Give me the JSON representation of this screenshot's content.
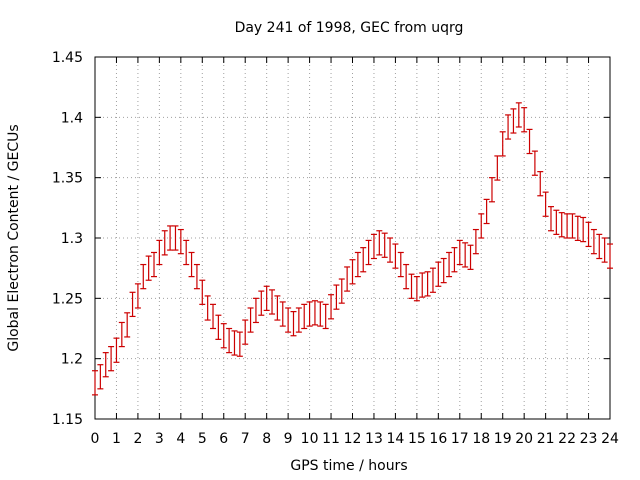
{
  "chart_data": {
    "type": "scatter",
    "title": "Day 241 of 1998, GEC from uqrg",
    "xlabel": "GPS time / hours",
    "ylabel": "Global Electron Content / GECUs",
    "xlim": [
      0,
      24
    ],
    "ylim": [
      1.15,
      1.45
    ],
    "xticks": [
      0,
      1,
      2,
      3,
      4,
      5,
      6,
      7,
      8,
      9,
      10,
      11,
      12,
      13,
      14,
      15,
      16,
      17,
      18,
      19,
      20,
      21,
      22,
      23,
      24
    ],
    "yticks": [
      "1.15",
      "1.2",
      "1.25",
      "1.3",
      "1.35",
      "1.4",
      "1.45"
    ],
    "grid": true,
    "series_color": "#cc0000",
    "x": [
      0.0,
      0.25,
      0.5,
      0.75,
      1.0,
      1.25,
      1.5,
      1.75,
      2.0,
      2.25,
      2.5,
      2.75,
      3.0,
      3.25,
      3.5,
      3.75,
      4.0,
      4.25,
      4.5,
      4.75,
      5.0,
      5.25,
      5.5,
      5.75,
      6.0,
      6.25,
      6.5,
      6.75,
      7.0,
      7.25,
      7.5,
      7.75,
      8.0,
      8.25,
      8.5,
      8.75,
      9.0,
      9.25,
      9.5,
      9.75,
      10.0,
      10.25,
      10.5,
      10.75,
      11.0,
      11.25,
      11.5,
      11.75,
      12.0,
      12.25,
      12.5,
      12.75,
      13.0,
      13.25,
      13.5,
      13.75,
      14.0,
      14.25,
      14.5,
      14.75,
      15.0,
      15.25,
      15.5,
      15.75,
      16.0,
      16.25,
      16.5,
      16.75,
      17.0,
      17.25,
      17.5,
      17.75,
      18.0,
      18.25,
      18.5,
      18.75,
      19.0,
      19.25,
      19.5,
      19.75,
      20.0,
      20.25,
      20.5,
      20.75,
      21.0,
      21.25,
      21.5,
      21.75,
      22.0,
      22.25,
      22.5,
      22.75,
      23.0,
      23.25,
      23.5,
      23.75,
      24.0
    ],
    "y": [
      1.18,
      1.185,
      1.195,
      1.2,
      1.207,
      1.22,
      1.228,
      1.245,
      1.252,
      1.268,
      1.275,
      1.278,
      1.288,
      1.296,
      1.3,
      1.3,
      1.297,
      1.288,
      1.278,
      1.268,
      1.255,
      1.242,
      1.235,
      1.226,
      1.219,
      1.215,
      1.213,
      1.212,
      1.222,
      1.232,
      1.24,
      1.246,
      1.25,
      1.247,
      1.242,
      1.237,
      1.232,
      1.229,
      1.232,
      1.235,
      1.237,
      1.238,
      1.237,
      1.235,
      1.243,
      1.251,
      1.256,
      1.266,
      1.272,
      1.278,
      1.282,
      1.288,
      1.293,
      1.296,
      1.294,
      1.29,
      1.285,
      1.278,
      1.268,
      1.26,
      1.258,
      1.261,
      1.262,
      1.265,
      1.27,
      1.273,
      1.278,
      1.282,
      1.288,
      1.286,
      1.284,
      1.297,
      1.31,
      1.322,
      1.34,
      1.358,
      1.378,
      1.392,
      1.397,
      1.402,
      1.398,
      1.38,
      1.362,
      1.345,
      1.328,
      1.316,
      1.313,
      1.311,
      1.31,
      1.31,
      1.308,
      1.307,
      1.303,
      1.297,
      1.293,
      1.29,
      1.285
    ],
    "yerr": 0.01
  }
}
